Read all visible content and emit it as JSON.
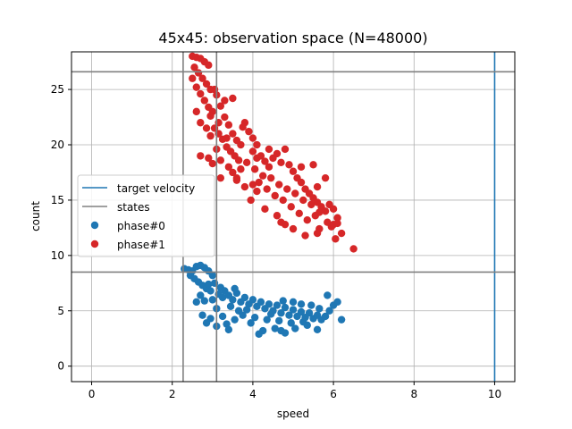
{
  "chart_data": {
    "type": "scatter",
    "title": "45x45: observation space (N=48000)",
    "xlabel": "speed",
    "ylabel": "count",
    "xlim": [
      -0.5,
      10.5
    ],
    "ylim": [
      -1.4,
      28.4
    ],
    "xticks": [
      0,
      2,
      4,
      6,
      8,
      10
    ],
    "yticks": [
      0,
      5,
      10,
      15,
      20,
      25
    ],
    "grid": true,
    "legend_position": "center-left",
    "vlines": [
      {
        "name": "target velocity",
        "x": 10,
        "color": "#1f77b4"
      },
      {
        "name": "states",
        "x": 2.27,
        "color": "#808080"
      },
      {
        "name": "states",
        "x": 3.1,
        "color": "#808080"
      }
    ],
    "hlines": [
      {
        "name": "states",
        "y": 26.6,
        "color": "#808080"
      },
      {
        "name": "states",
        "y": 8.5,
        "color": "#808080"
      }
    ],
    "series": [
      {
        "name": "phase#0",
        "color": "#1f77b4",
        "points": [
          [
            2.3,
            8.8
          ],
          [
            2.4,
            8.7
          ],
          [
            2.5,
            8.6
          ],
          [
            2.6,
            9.0
          ],
          [
            2.7,
            9.1
          ],
          [
            2.8,
            8.9
          ],
          [
            2.9,
            8.6
          ],
          [
            3.0,
            8.2
          ],
          [
            2.45,
            8.2
          ],
          [
            2.55,
            7.9
          ],
          [
            2.65,
            7.6
          ],
          [
            2.75,
            7.3
          ],
          [
            2.85,
            7.0
          ],
          [
            2.95,
            6.8
          ],
          [
            3.05,
            7.5
          ],
          [
            3.15,
            6.5
          ],
          [
            3.2,
            7.1
          ],
          [
            3.3,
            6.8
          ],
          [
            3.4,
            6.4
          ],
          [
            3.5,
            6.0
          ],
          [
            3.6,
            6.6
          ],
          [
            3.7,
            5.8
          ],
          [
            3.8,
            6.2
          ],
          [
            3.9,
            5.6
          ],
          [
            4.0,
            6.0
          ],
          [
            4.1,
            5.4
          ],
          [
            4.2,
            5.8
          ],
          [
            4.3,
            5.2
          ],
          [
            4.4,
            5.6
          ],
          [
            4.5,
            5.0
          ],
          [
            4.6,
            5.5
          ],
          [
            4.7,
            4.8
          ],
          [
            4.8,
            5.3
          ],
          [
            4.9,
            4.6
          ],
          [
            5.0,
            5.1
          ],
          [
            5.1,
            4.5
          ],
          [
            5.2,
            4.9
          ],
          [
            5.3,
            4.4
          ],
          [
            5.4,
            4.8
          ],
          [
            5.5,
            4.3
          ],
          [
            5.6,
            4.6
          ],
          [
            5.7,
            4.2
          ],
          [
            5.8,
            4.5
          ],
          [
            5.9,
            5.0
          ],
          [
            6.0,
            5.5
          ],
          [
            6.1,
            5.8
          ],
          [
            6.2,
            4.2
          ],
          [
            5.85,
            6.4
          ],
          [
            2.75,
            4.6
          ],
          [
            2.95,
            4.3
          ],
          [
            2.85,
            3.9
          ],
          [
            3.1,
            3.6
          ],
          [
            3.35,
            3.8
          ],
          [
            3.55,
            4.2
          ],
          [
            3.95,
            3.9
          ],
          [
            4.15,
            2.9
          ],
          [
            4.25,
            3.2
          ],
          [
            4.55,
            3.4
          ],
          [
            4.7,
            3.2
          ],
          [
            4.8,
            3.0
          ],
          [
            5.05,
            3.4
          ],
          [
            5.35,
            3.7
          ],
          [
            5.6,
            3.3
          ],
          [
            3.4,
            3.3
          ],
          [
            3.25,
            4.5
          ],
          [
            3.75,
            4.6
          ],
          [
            3.65,
            5.0
          ],
          [
            4.05,
            4.4
          ],
          [
            4.35,
            4.2
          ],
          [
            4.65,
            4.1
          ],
          [
            4.95,
            3.9
          ],
          [
            5.25,
            4.0
          ],
          [
            2.6,
            5.8
          ],
          [
            2.7,
            6.4
          ],
          [
            2.8,
            5.9
          ],
          [
            3.0,
            6.0
          ],
          [
            3.1,
            5.2
          ],
          [
            3.45,
            5.4
          ],
          [
            3.85,
            5.1
          ],
          [
            4.45,
            4.7
          ],
          [
            4.75,
            5.9
          ],
          [
            5.0,
            5.8
          ],
          [
            5.2,
            5.6
          ],
          [
            5.45,
            5.5
          ],
          [
            5.65,
            5.2
          ],
          [
            3.55,
            7.0
          ],
          [
            3.25,
            6.2
          ],
          [
            2.9,
            7.4
          ]
        ]
      },
      {
        "name": "phase#1",
        "color": "#d62728",
        "points": [
          [
            2.5,
            28.0
          ],
          [
            2.6,
            27.9
          ],
          [
            2.7,
            27.8
          ],
          [
            2.8,
            27.5
          ],
          [
            2.9,
            27.2
          ],
          [
            2.55,
            27.0
          ],
          [
            2.65,
            26.5
          ],
          [
            2.75,
            26.0
          ],
          [
            2.85,
            25.5
          ],
          [
            2.95,
            25.0
          ],
          [
            2.5,
            26.0
          ],
          [
            2.6,
            25.2
          ],
          [
            2.7,
            24.6
          ],
          [
            2.8,
            24.0
          ],
          [
            2.9,
            23.4
          ],
          [
            3.0,
            23.0
          ],
          [
            3.1,
            24.5
          ],
          [
            3.2,
            23.5
          ],
          [
            3.3,
            22.5
          ],
          [
            3.4,
            21.8
          ],
          [
            3.5,
            21.0
          ],
          [
            3.6,
            20.4
          ],
          [
            3.7,
            20.0
          ],
          [
            3.5,
            24.2
          ],
          [
            2.6,
            23.0
          ],
          [
            2.7,
            22.0
          ],
          [
            2.85,
            21.5
          ],
          [
            2.95,
            20.8
          ],
          [
            3.05,
            21.5
          ],
          [
            3.15,
            22.0
          ],
          [
            3.25,
            20.5
          ],
          [
            3.35,
            19.8
          ],
          [
            3.45,
            19.4
          ],
          [
            3.55,
            19.0
          ],
          [
            3.65,
            18.6
          ],
          [
            3.8,
            22.0
          ],
          [
            3.9,
            21.2
          ],
          [
            4.0,
            20.6
          ],
          [
            4.1,
            20.0
          ],
          [
            3.75,
            21.6
          ],
          [
            2.7,
            19.0
          ],
          [
            2.9,
            18.8
          ],
          [
            3.0,
            18.3
          ],
          [
            3.2,
            18.6
          ],
          [
            3.4,
            18.0
          ],
          [
            3.5,
            17.5
          ],
          [
            3.6,
            17.0
          ],
          [
            3.7,
            17.8
          ],
          [
            3.85,
            18.4
          ],
          [
            4.0,
            19.4
          ],
          [
            4.1,
            18.8
          ],
          [
            4.2,
            19.0
          ],
          [
            4.3,
            18.5
          ],
          [
            4.4,
            18.0
          ],
          [
            4.5,
            18.8
          ],
          [
            4.6,
            19.2
          ],
          [
            4.7,
            18.4
          ],
          [
            4.8,
            19.6
          ],
          [
            4.9,
            18.2
          ],
          [
            5.0,
            17.6
          ],
          [
            5.1,
            17.0
          ],
          [
            5.2,
            16.6
          ],
          [
            5.3,
            16.0
          ],
          [
            5.4,
            15.6
          ],
          [
            5.5,
            15.2
          ],
          [
            5.6,
            14.8
          ],
          [
            5.7,
            14.4
          ],
          [
            5.8,
            14.0
          ],
          [
            5.9,
            14.6
          ],
          [
            6.0,
            14.2
          ],
          [
            6.1,
            13.4
          ],
          [
            6.2,
            12.0
          ],
          [
            6.5,
            10.6
          ],
          [
            6.05,
            11.5
          ],
          [
            5.95,
            12.6
          ],
          [
            5.85,
            13.0
          ],
          [
            5.65,
            12.4
          ],
          [
            5.55,
            13.6
          ],
          [
            5.35,
            13.2
          ],
          [
            5.15,
            13.8
          ],
          [
            4.95,
            14.4
          ],
          [
            4.75,
            15.0
          ],
          [
            4.55,
            15.4
          ],
          [
            4.35,
            16.0
          ],
          [
            4.15,
            16.6
          ],
          [
            4.25,
            17.2
          ],
          [
            4.45,
            17.0
          ],
          [
            4.65,
            16.4
          ],
          [
            4.85,
            16.0
          ],
          [
            5.05,
            15.6
          ],
          [
            5.25,
            15.0
          ],
          [
            5.45,
            14.6
          ],
          [
            5.65,
            13.9
          ],
          [
            4.3,
            14.2
          ],
          [
            4.6,
            13.6
          ],
          [
            4.8,
            12.8
          ],
          [
            5.0,
            12.4
          ],
          [
            5.3,
            11.8
          ],
          [
            4.7,
            13.0
          ],
          [
            5.6,
            12.0
          ],
          [
            4.1,
            15.8
          ],
          [
            3.95,
            15.0
          ],
          [
            4.0,
            16.4
          ],
          [
            4.4,
            19.6
          ],
          [
            5.5,
            18.2
          ],
          [
            5.8,
            17.0
          ],
          [
            5.6,
            16.2
          ],
          [
            5.2,
            18.0
          ],
          [
            6.0,
            12.8
          ],
          [
            6.1,
            12.9
          ],
          [
            3.3,
            24.0
          ],
          [
            3.1,
            19.6
          ],
          [
            3.2,
            17.0
          ],
          [
            3.6,
            16.8
          ],
          [
            3.8,
            16.2
          ],
          [
            4.05,
            17.8
          ],
          [
            3.35,
            20.6
          ],
          [
            3.15,
            21.0
          ],
          [
            2.95,
            22.6
          ],
          [
            3.05,
            25.0
          ]
        ]
      }
    ],
    "legend": [
      {
        "label": "target velocity",
        "kind": "line",
        "color": "#1f77b4"
      },
      {
        "label": "states",
        "kind": "line",
        "color": "#808080"
      },
      {
        "label": "phase#0",
        "kind": "marker",
        "color": "#1f77b4"
      },
      {
        "label": "phase#1",
        "kind": "marker",
        "color": "#d62728"
      }
    ]
  }
}
